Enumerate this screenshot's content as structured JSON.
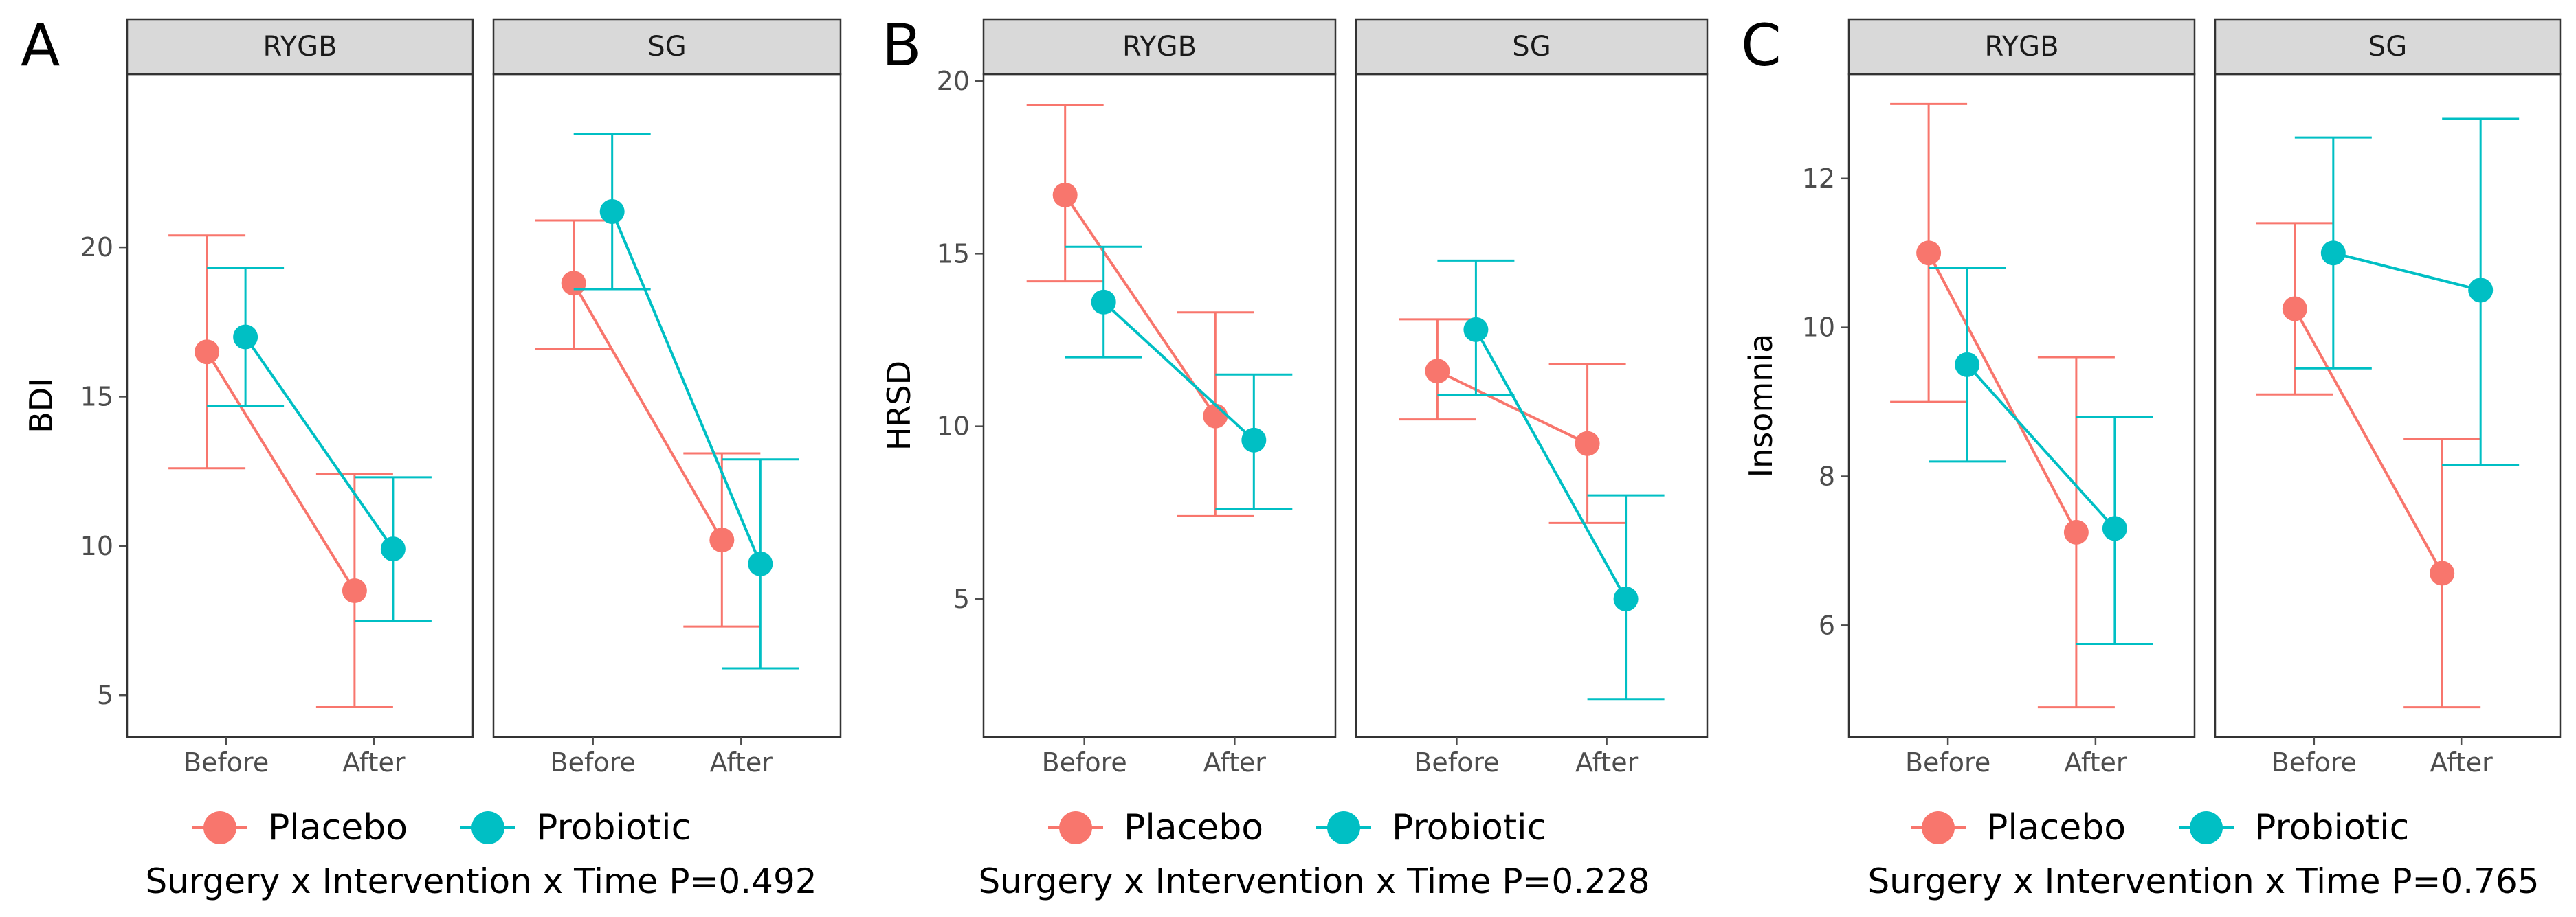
{
  "colors": {
    "Placebo": "#F8766D",
    "Probiotic": "#00BFC4",
    "strip_fill": "#D9D9D9",
    "panel_border": "#333333",
    "tick": "#4d4d4d"
  },
  "chart_data": [
    {
      "type": "line",
      "label": "A",
      "ylabel": "BDI",
      "ylim": [
        3.6,
        25.8
      ],
      "yticks": [
        5,
        10,
        15,
        20
      ],
      "x_categories": [
        "Before",
        "After"
      ],
      "facets": [
        {
          "strip": "RYGB",
          "series": [
            {
              "name": "Placebo",
              "values": [
                16.5,
                8.5
              ],
              "lower": [
                12.6,
                4.6
              ],
              "upper": [
                20.4,
                12.4
              ]
            },
            {
              "name": "Probiotic",
              "values": [
                17.0,
                9.9
              ],
              "lower": [
                14.7,
                7.5
              ],
              "upper": [
                19.3,
                12.3
              ]
            }
          ]
        },
        {
          "strip": "SG",
          "series": [
            {
              "name": "Placebo",
              "values": [
                18.8,
                10.2
              ],
              "lower": [
                16.6,
                7.3
              ],
              "upper": [
                20.9,
                13.1
              ]
            },
            {
              "name": "Probiotic",
              "values": [
                21.2,
                9.4
              ],
              "lower": [
                18.6,
                5.9
              ],
              "upper": [
                23.8,
                12.9
              ]
            }
          ]
        }
      ],
      "legend": [
        "Placebo",
        "Probiotic"
      ],
      "ptext": "Surgery x Intervention x Time P=0.492"
    },
    {
      "type": "line",
      "label": "B",
      "ylabel": "HRSD",
      "ylim": [
        1.0,
        20.2
      ],
      "yticks": [
        5,
        10,
        15,
        20
      ],
      "x_categories": [
        "Before",
        "After"
      ],
      "facets": [
        {
          "strip": "RYGB",
          "series": [
            {
              "name": "Placebo",
              "values": [
                16.7,
                10.3
              ],
              "lower": [
                14.2,
                7.4
              ],
              "upper": [
                19.3,
                13.3
              ]
            },
            {
              "name": "Probiotic",
              "values": [
                13.6,
                9.6
              ],
              "lower": [
                12.0,
                7.6
              ],
              "upper": [
                15.2,
                11.5
              ]
            }
          ]
        },
        {
          "strip": "SG",
          "series": [
            {
              "name": "Placebo",
              "values": [
                11.6,
                9.5
              ],
              "lower": [
                10.2,
                7.2
              ],
              "upper": [
                13.1,
                11.8
              ]
            },
            {
              "name": "Probiotic",
              "values": [
                12.8,
                5.0
              ],
              "lower": [
                10.9,
                2.1
              ],
              "upper": [
                14.8,
                8.0
              ]
            }
          ]
        }
      ],
      "legend": [
        "Placebo",
        "Probiotic"
      ],
      "ptext": "Surgery x Intervention x Time P=0.228"
    },
    {
      "type": "line",
      "label": "C",
      "ylabel": "Insomnia",
      "ylim": [
        4.5,
        13.4
      ],
      "yticks": [
        6,
        8,
        10,
        12
      ],
      "x_categories": [
        "Before",
        "After"
      ],
      "facets": [
        {
          "strip": "RYGB",
          "series": [
            {
              "name": "Placebo",
              "values": [
                11.0,
                7.25
              ],
              "lower": [
                9.0,
                4.9
              ],
              "upper": [
                13.0,
                9.6
              ]
            },
            {
              "name": "Probiotic",
              "values": [
                9.5,
                7.3
              ],
              "lower": [
                8.2,
                5.75
              ],
              "upper": [
                10.8,
                8.8
              ]
            }
          ]
        },
        {
          "strip": "SG",
          "series": [
            {
              "name": "Placebo",
              "values": [
                10.25,
                6.7
              ],
              "lower": [
                9.1,
                4.9
              ],
              "upper": [
                11.4,
                8.5
              ]
            },
            {
              "name": "Probiotic",
              "values": [
                11.0,
                10.5
              ],
              "lower": [
                9.45,
                8.15
              ],
              "upper": [
                12.55,
                12.8
              ]
            }
          ]
        }
      ],
      "legend": [
        "Placebo",
        "Probiotic"
      ],
      "ptext": "Surgery x Intervention x Time P=0.765"
    }
  ]
}
